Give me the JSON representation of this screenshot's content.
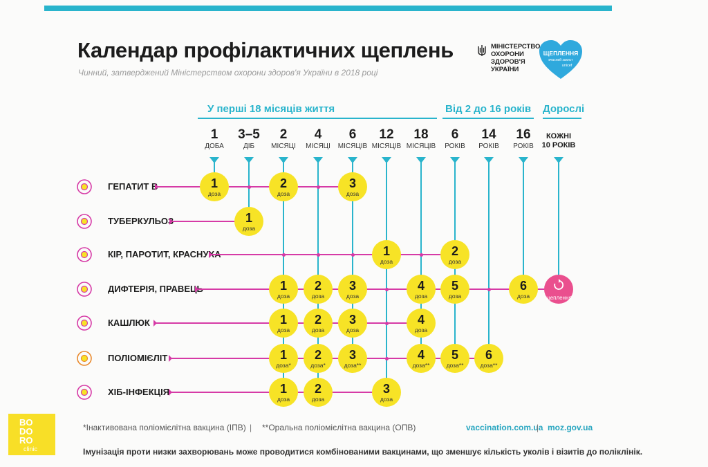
{
  "header": {
    "title": "Календар профілактичних щеплень",
    "subtitle": "Чинний, затверджений Міністерством охорони здоров'я України в 2018 році",
    "ministry": [
      "МІНІСТЕРСТВО",
      "ОХОРОНИ",
      "ЗДОРОВ'Я",
      "УКРАЇНИ"
    ],
    "heart_logo": {
      "line1": "ЩЕПЛЕННЯ",
      "line2": "вчасний захист",
      "line3": "unicef"
    }
  },
  "groups": [
    {
      "label": "У перші 18 місяців життя"
    },
    {
      "label": "Від 2 до 16 років"
    },
    {
      "label": "Дорослі"
    }
  ],
  "columns": [
    {
      "num": "1",
      "unit": "ДОБА"
    },
    {
      "num": "3–5",
      "unit": "ДІБ"
    },
    {
      "num": "2",
      "unit": "МІСЯЦІ"
    },
    {
      "num": "4",
      "unit": "МІСЯЦІ"
    },
    {
      "num": "6",
      "unit": "МІСЯЦІВ"
    },
    {
      "num": "12",
      "unit": "МІСЯЦІВ"
    },
    {
      "num": "18",
      "unit": "МІСЯЦІВ"
    },
    {
      "num": "6",
      "unit": "РОКІВ"
    },
    {
      "num": "14",
      "unit": "РОКІВ"
    },
    {
      "num": "16",
      "unit": "РОКІВ"
    },
    {
      "num": "КОЖНІ",
      "unit": "10 РОКІВ"
    }
  ],
  "dose_word": "доза",
  "diseases": [
    {
      "name": "ГЕПАТИТ В",
      "icon": "hepatitis-virus-icon",
      "doses": [
        {
          "col": 0,
          "n": "1"
        },
        {
          "col": 2,
          "n": "2"
        },
        {
          "col": 4,
          "n": "3"
        }
      ]
    },
    {
      "name": "ТУБЕРКУЛЬОЗ",
      "icon": "tuberculosis-bacteria-icon",
      "doses": [
        {
          "col": 1,
          "n": "1"
        }
      ]
    },
    {
      "name": "КІР, ПАРОТИТ, КРАСНУХА",
      "icon": "measles-virus-icon",
      "doses": [
        {
          "col": 5,
          "n": "1"
        },
        {
          "col": 7,
          "n": "2"
        }
      ]
    },
    {
      "name": "ДИФТЕРІЯ, ПРАВЕЦЬ",
      "icon": "diphtheria-bacteria-icon",
      "doses": [
        {
          "col": 2,
          "n": "1"
        },
        {
          "col": 3,
          "n": "2"
        },
        {
          "col": 4,
          "n": "3"
        },
        {
          "col": 6,
          "n": "4"
        },
        {
          "col": 7,
          "n": "5"
        },
        {
          "col": 9,
          "n": "6"
        }
      ],
      "adult": "щеплення"
    },
    {
      "name": "КАШЛЮК",
      "icon": "pertussis-bacteria-icon",
      "doses": [
        {
          "col": 2,
          "n": "1"
        },
        {
          "col": 3,
          "n": "2"
        },
        {
          "col": 4,
          "n": "3"
        },
        {
          "col": 6,
          "n": "4"
        }
      ]
    },
    {
      "name": "ПОЛІОМІЄЛІТ",
      "icon": "polio-virus-icon",
      "doses": [
        {
          "col": 2,
          "n": "1",
          "mark": "*"
        },
        {
          "col": 3,
          "n": "2",
          "mark": "*"
        },
        {
          "col": 4,
          "n": "3",
          "mark": "**"
        },
        {
          "col": 6,
          "n": "4",
          "mark": "**"
        },
        {
          "col": 7,
          "n": "5",
          "mark": "**"
        },
        {
          "col": 8,
          "n": "6",
          "mark": "**"
        }
      ]
    },
    {
      "name": "ХІБ-ІНФЕКЦІЯ",
      "icon": "hib-bacteria-icon",
      "doses": [
        {
          "col": 2,
          "n": "1"
        },
        {
          "col": 3,
          "n": "2"
        },
        {
          "col": 5,
          "n": "3"
        }
      ]
    }
  ],
  "footer": {
    "footnote_1": "*Інактивована поліомієлітна вакцина (ІПВ)",
    "separator": "|",
    "footnote_2": "**Оральна поліомієлітна вакцина (ОПВ)",
    "site_1": "vaccination.com.ua",
    "site_2": "moz.gov.ua",
    "note": "Імунізація проти низки захворювань може проводитися комбінованими вакцинами, що зменшує кількість уколів і візитів до поліклінік."
  },
  "brand": {
    "l1": "BO",
    "l2": "DO",
    "l3": "RO",
    "l4": "clinic"
  },
  "colors": {
    "accent": "#29b4cc",
    "line": "#d63aa6",
    "dose": "#f7e326",
    "adult": "#ea4f8e"
  }
}
